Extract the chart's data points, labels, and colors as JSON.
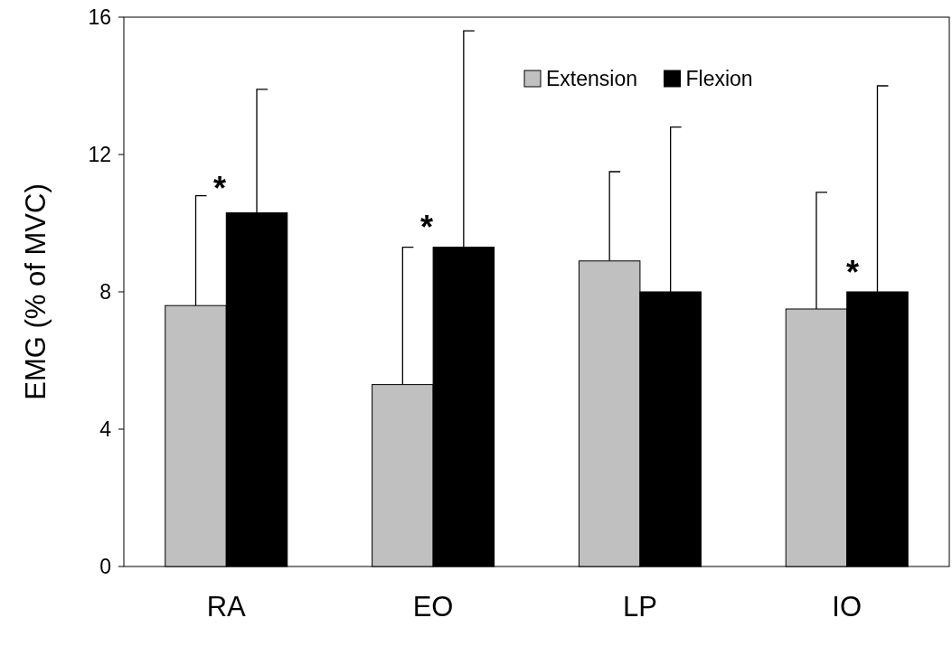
{
  "chart_data": {
    "type": "bar",
    "ylabel": "EMG  (% of MVC)",
    "categories": [
      "RA",
      "EO",
      "LP",
      "IO"
    ],
    "series": [
      {
        "name": "Extension",
        "color": "#c0c0c0",
        "values": [
          7.6,
          5.3,
          8.9,
          7.5
        ],
        "errors": [
          [
            7.6,
            10.8
          ],
          [
            5.3,
            9.3
          ],
          [
            8.9,
            11.5
          ],
          [
            7.5,
            10.9
          ]
        ]
      },
      {
        "name": "Flexion",
        "color": "#000000",
        "values": [
          10.3,
          9.3,
          8.0,
          8.0
        ],
        "errors": [
          [
            10.3,
            13.9
          ],
          [
            9.3,
            15.6
          ],
          [
            8.0,
            12.8
          ],
          [
            8.0,
            14.0
          ]
        ]
      }
    ],
    "ylim": [
      0,
      16
    ],
    "yticks": [
      0,
      4,
      8,
      12,
      16
    ],
    "grid": false,
    "legend": "top right",
    "annotations": [
      "*",
      "*",
      "*"
    ]
  }
}
